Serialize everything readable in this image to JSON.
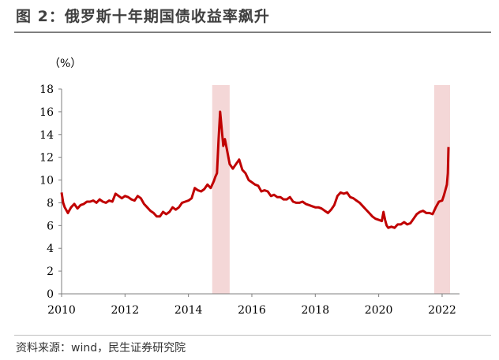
{
  "figure_title": "图 2：俄罗斯十年期国债收益率飙升",
  "source_note": "资料来源：wind，民生证券研究院",
  "colors": {
    "line": "#c00000",
    "highlight": "#f4d7d7",
    "axis": "#7f7f7f"
  },
  "chart_data": {
    "type": "line",
    "title": "",
    "xlabel": "",
    "ylabel": "（%）",
    "xlim": [
      2010,
      2022.25
    ],
    "ylim": [
      0,
      18
    ],
    "x_ticks": [
      "2010",
      "2012",
      "2014",
      "2016",
      "2018",
      "2020",
      "2022"
    ],
    "y_ticks": [
      "0",
      "2",
      "4",
      "6",
      "8",
      "10",
      "12",
      "14",
      "16",
      "18"
    ],
    "grid": false,
    "highlight_periods": [
      [
        2014.75,
        2015.3
      ],
      [
        2021.75,
        2022.25
      ]
    ],
    "series": [
      {
        "x": [
          2010.0,
          2010.05,
          2010.1,
          2010.2,
          2010.3,
          2010.4,
          2010.5,
          2010.6,
          2010.7,
          2010.8,
          2010.9,
          2011.0,
          2011.1,
          2011.2,
          2011.3,
          2011.4,
          2011.5,
          2011.6,
          2011.7,
          2011.8,
          2011.9,
          2012.0,
          2012.1,
          2012.2,
          2012.3,
          2012.4,
          2012.5,
          2012.6,
          2012.7,
          2012.8,
          2012.9,
          2013.0,
          2013.1,
          2013.2,
          2013.3,
          2013.4,
          2013.5,
          2013.6,
          2013.7,
          2013.8,
          2013.9,
          2014.0,
          2014.1,
          2014.2,
          2014.3,
          2014.4,
          2014.5,
          2014.6,
          2014.7,
          2014.8,
          2014.85,
          2014.9,
          2014.95,
          2015.0,
          2015.05,
          2015.1,
          2015.15,
          2015.2,
          2015.3,
          2015.4,
          2015.5,
          2015.6,
          2015.7,
          2015.8,
          2015.9,
          2016.0,
          2016.1,
          2016.2,
          2016.3,
          2016.4,
          2016.5,
          2016.6,
          2016.7,
          2016.8,
          2016.9,
          2017.0,
          2017.1,
          2017.2,
          2017.3,
          2017.4,
          2017.5,
          2017.6,
          2017.7,
          2017.8,
          2017.9,
          2018.0,
          2018.1,
          2018.2,
          2018.3,
          2018.4,
          2018.5,
          2018.6,
          2018.7,
          2018.8,
          2018.9,
          2019.0,
          2019.1,
          2019.2,
          2019.3,
          2019.4,
          2019.5,
          2019.6,
          2019.7,
          2019.8,
          2019.9,
          2020.0,
          2020.1,
          2020.15,
          2020.2,
          2020.25,
          2020.3,
          2020.4,
          2020.5,
          2020.6,
          2020.7,
          2020.8,
          2020.9,
          2021.0,
          2021.1,
          2021.2,
          2021.3,
          2021.4,
          2021.5,
          2021.6,
          2021.7,
          2021.8,
          2021.9,
          2022.0,
          2022.05,
          2022.1,
          2022.15,
          2022.18,
          2022.2
        ],
        "values": [
          8.9,
          8.0,
          7.6,
          7.1,
          7.6,
          7.9,
          7.5,
          7.8,
          7.9,
          8.1,
          8.1,
          8.2,
          8.0,
          8.3,
          8.1,
          8.0,
          8.2,
          8.1,
          8.8,
          8.6,
          8.4,
          8.6,
          8.5,
          8.3,
          8.2,
          8.6,
          8.4,
          7.9,
          7.6,
          7.3,
          7.1,
          6.8,
          6.8,
          7.2,
          7.0,
          7.2,
          7.6,
          7.4,
          7.6,
          8.0,
          8.1,
          8.2,
          8.4,
          9.3,
          9.1,
          9.0,
          9.2,
          9.6,
          9.3,
          9.9,
          10.3,
          10.6,
          13.5,
          16.0,
          14.5,
          13.0,
          13.6,
          12.9,
          11.4,
          11.0,
          11.4,
          11.8,
          10.9,
          10.6,
          10.0,
          9.8,
          9.6,
          9.5,
          9.0,
          9.1,
          9.0,
          8.6,
          8.7,
          8.5,
          8.5,
          8.3,
          8.3,
          8.5,
          8.1,
          8.0,
          8.0,
          8.1,
          7.9,
          7.8,
          7.7,
          7.6,
          7.6,
          7.5,
          7.3,
          7.1,
          7.4,
          7.8,
          8.6,
          8.9,
          8.8,
          8.9,
          8.5,
          8.4,
          8.2,
          8.0,
          7.7,
          7.4,
          7.1,
          6.8,
          6.6,
          6.5,
          6.4,
          7.2,
          6.5,
          6.0,
          5.8,
          5.9,
          5.8,
          6.1,
          6.1,
          6.3,
          6.1,
          6.2,
          6.6,
          7.0,
          7.2,
          7.3,
          7.1,
          7.1,
          7.0,
          7.6,
          8.1,
          8.2,
          8.6,
          9.1,
          9.6,
          10.6,
          12.9
        ]
      }
    ]
  }
}
